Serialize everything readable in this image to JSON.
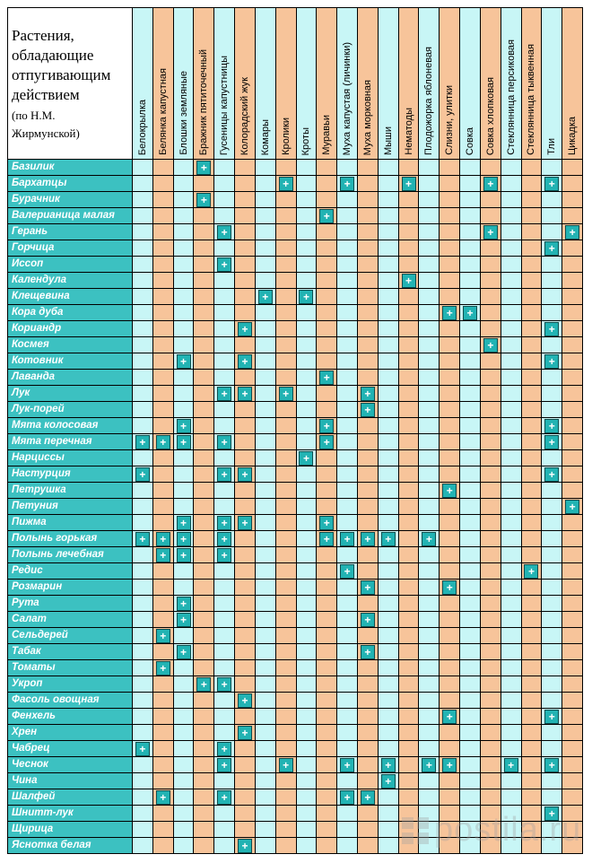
{
  "title": {
    "main": "Растения,\nобладающие\nотпугивающим\nдействием",
    "sub": "(по Н.М.\nЖирмунской)"
  },
  "colors": {
    "teal_column": "#c8f6f6",
    "orange_column": "#f7c49a",
    "row_label_bg": "#3cc1c1",
    "mark_bg": "#22b3b3"
  },
  "mark_symbol": "+",
  "columns": [
    "Белокрылка",
    "Белянка капустная",
    "Блошки земляные",
    "Бражник пятиточечный",
    "Гусеницы капустницы",
    "Колорадский жук",
    "Комары",
    "Кролики",
    "Кроты",
    "Муравьи",
    "Муха капустая (личинки)",
    "Муха морковная",
    "Мыши",
    "Нематоды",
    "Плодожорка яблоневая",
    "Слизни, улитки",
    "Совка",
    "Совка хлопковая",
    "Стеклянница персиковая",
    "Стеклянница тыквенная",
    "Тли",
    "Цикадка"
  ],
  "rows": [
    {
      "plant": "Базилик",
      "marks": [
        3
      ]
    },
    {
      "plant": "Бархатцы",
      "marks": [
        7,
        10,
        13,
        17,
        20
      ]
    },
    {
      "plant": "Бурачник",
      "marks": [
        3
      ]
    },
    {
      "plant": "Валерианица малая",
      "marks": [
        9
      ]
    },
    {
      "plant": "Герань",
      "marks": [
        4,
        17,
        21
      ]
    },
    {
      "plant": "Горчица",
      "marks": [
        20
      ]
    },
    {
      "plant": "Иссоп",
      "marks": [
        4
      ]
    },
    {
      "plant": "Календула",
      "marks": [
        13
      ]
    },
    {
      "plant": "Клещевина",
      "marks": [
        6,
        8
      ]
    },
    {
      "plant": "Кора дуба",
      "marks": [
        15,
        16
      ]
    },
    {
      "plant": "Кориандр",
      "marks": [
        5,
        20
      ]
    },
    {
      "plant": "Космея",
      "marks": [
        17
      ]
    },
    {
      "plant": "Котовник",
      "marks": [
        2,
        5,
        20
      ]
    },
    {
      "plant": "Лаванда",
      "marks": [
        9
      ]
    },
    {
      "plant": "Лук",
      "marks": [
        4,
        5,
        7,
        11
      ]
    },
    {
      "plant": "Лук-порей",
      "marks": [
        11
      ]
    },
    {
      "plant": "Мята колосовая",
      "marks": [
        2,
        9,
        20
      ]
    },
    {
      "plant": "Мята перечная",
      "marks": [
        0,
        1,
        2,
        4,
        9,
        20
      ]
    },
    {
      "plant": "Нарциссы",
      "marks": [
        8
      ]
    },
    {
      "plant": "Настурция",
      "marks": [
        0,
        4,
        5,
        20
      ]
    },
    {
      "plant": "Петрушка",
      "marks": [
        15
      ]
    },
    {
      "plant": "Петуния",
      "marks": [
        21
      ]
    },
    {
      "plant": "Пижма",
      "marks": [
        2,
        4,
        5,
        9
      ]
    },
    {
      "plant": "Полынь горькая",
      "marks": [
        0,
        1,
        2,
        4,
        9,
        10,
        11,
        12,
        14
      ]
    },
    {
      "plant": "Полынь лечебная",
      "marks": [
        1,
        2,
        4
      ]
    },
    {
      "plant": "Редис",
      "marks": [
        10,
        19
      ]
    },
    {
      "plant": "Розмарин",
      "marks": [
        11,
        15
      ]
    },
    {
      "plant": "Рута",
      "marks": [
        2
      ]
    },
    {
      "plant": "Салат",
      "marks": [
        2,
        11
      ]
    },
    {
      "plant": "Сельдерей",
      "marks": [
        1
      ]
    },
    {
      "plant": "Табак",
      "marks": [
        2,
        11
      ]
    },
    {
      "plant": "Томаты",
      "marks": [
        1
      ]
    },
    {
      "plant": "Укроп",
      "marks": [
        3,
        4
      ]
    },
    {
      "plant": "Фасоль овощная",
      "marks": [
        5
      ]
    },
    {
      "plant": "Фенхель",
      "marks": [
        15,
        20
      ]
    },
    {
      "plant": "Хрен",
      "marks": [
        5
      ]
    },
    {
      "plant": "Чабрец",
      "marks": [
        0,
        4
      ]
    },
    {
      "plant": "Чеснок",
      "marks": [
        4,
        7,
        10,
        12,
        14,
        15,
        18,
        20
      ]
    },
    {
      "plant": "Чина",
      "marks": [
        12
      ]
    },
    {
      "plant": "Шалфей",
      "marks": [
        1,
        4,
        10,
        11
      ]
    },
    {
      "plant": "Шнитт-лук",
      "marks": [
        20
      ]
    },
    {
      "plant": "Щирица",
      "marks": []
    },
    {
      "plant": "Яснотка белая",
      "marks": [
        5
      ]
    }
  ],
  "watermark": "postila.ru"
}
